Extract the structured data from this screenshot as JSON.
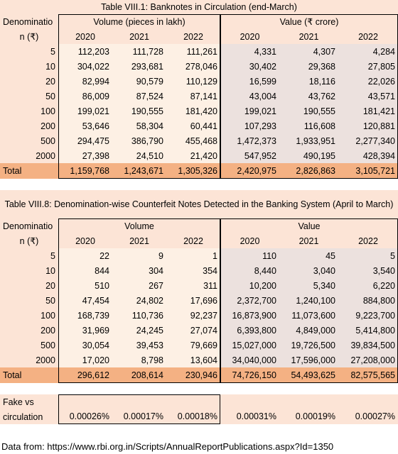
{
  "tables": [
    {
      "title": "Table VIII.1: Banknotes in Circulation (end-March)",
      "header": {
        "label_top": "Denominatio",
        "label_bottom": "n (₹)",
        "groups": [
          "Volume (pieces in lakh)",
          "Value (₹ crore)"
        ],
        "years": [
          "2020",
          "2021",
          "2022",
          "2020",
          "2021",
          "2022"
        ]
      },
      "rows": [
        [
          "5",
          "112,203",
          "111,728",
          "111,261",
          "4,331",
          "4,307",
          "4,284"
        ],
        [
          "10",
          "304,022",
          "293,681",
          "278,046",
          "30,402",
          "29,368",
          "27,805"
        ],
        [
          "20",
          "82,994",
          "90,579",
          "110,129",
          "16,599",
          "18,116",
          "22,026"
        ],
        [
          "50",
          "86,009",
          "87,524",
          "87,141",
          "43,004",
          "43,762",
          "43,571"
        ],
        [
          "100",
          "199,021",
          "190,555",
          "181,420",
          "199,021",
          "190,555",
          "181,421"
        ],
        [
          "200",
          "53,646",
          "58,304",
          "60,441",
          "107,293",
          "116,608",
          "120,881"
        ],
        [
          "500",
          "294,475",
          "386,790",
          "455,468",
          "1,472,373",
          "1,933,951",
          "2,277,340"
        ],
        [
          "2000",
          "27,398",
          "24,510",
          "21,420",
          "547,952",
          "490,195",
          "428,394"
        ]
      ],
      "total": [
        "Total",
        "1,159,768",
        "1,243,671",
        "1,305,326",
        "2,420,975",
        "2,826,863",
        "3,105,721"
      ]
    },
    {
      "title": "Table VIII.8: Denomination-wise Counterfeit Notes Detected in the Banking System (April to March)",
      "header": {
        "label_top": "Denominatio",
        "label_bottom": "n (₹)",
        "groups": [
          "Volume",
          "Value"
        ],
        "years": [
          "2020",
          "2021",
          "2022",
          "2020",
          "2021",
          "2022"
        ]
      },
      "rows": [
        [
          "5",
          "22",
          "9",
          "1",
          "110",
          "45",
          "5"
        ],
        [
          "10",
          "844",
          "304",
          "354",
          "8,440",
          "3,040",
          "3,540"
        ],
        [
          "20",
          "510",
          "267",
          "311",
          "10,200",
          "5,340",
          "6,220"
        ],
        [
          "50",
          "47,454",
          "24,802",
          "17,696",
          "2,372,700",
          "1,240,100",
          "884,800"
        ],
        [
          "100",
          "168,739",
          "110,736",
          "92,237",
          "16,873,900",
          "11,073,600",
          "9,223,700"
        ],
        [
          "200",
          "31,969",
          "24,245",
          "27,074",
          "6,393,800",
          "4,849,000",
          "5,414,800"
        ],
        [
          "500",
          "30,054",
          "39,453",
          "79,669",
          "15,027,000",
          "19,726,500",
          "39,834,500"
        ],
        [
          "2000",
          "17,020",
          "8,798",
          "13,604",
          "34,040,000",
          "17,596,000",
          "27,208,000"
        ]
      ],
      "total": [
        "Total",
        "296,612",
        "208,614",
        "230,946",
        "74,726,150",
        "54,493,625",
        "82,575,565"
      ]
    }
  ],
  "ratio": {
    "label_top": "Fake vs",
    "label_bottom": "circulation",
    "values": [
      "0.00026%",
      "0.00017%",
      "0.00018%",
      "0.00031%",
      "0.00019%",
      "0.00027%"
    ]
  },
  "source": "Data from: https://www.rbi.org.in/Scripts/AnnualReportPublications.aspx?Id=1350"
}
